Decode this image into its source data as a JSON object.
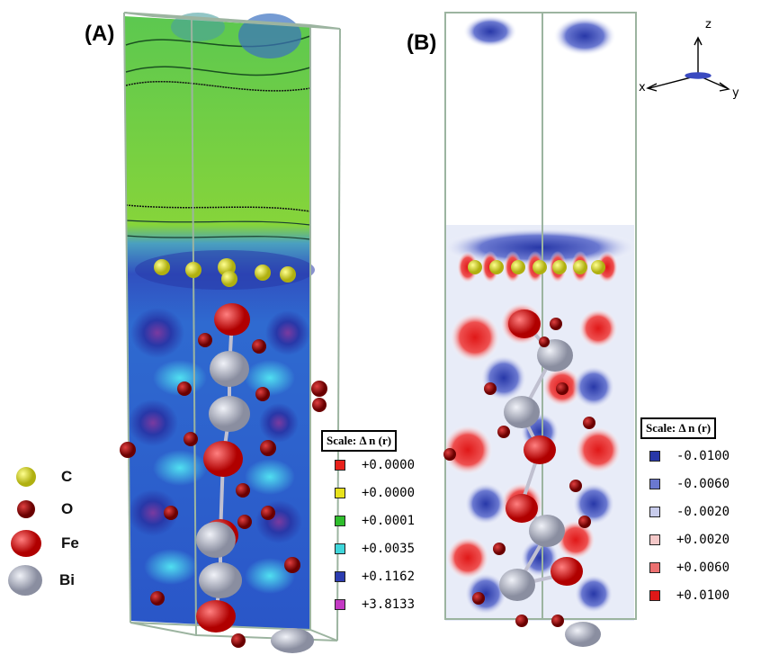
{
  "panels": {
    "a": {
      "label": "(A)"
    },
    "b": {
      "label": "(B)"
    }
  },
  "axes": {
    "z": "z",
    "x": "x",
    "y": "y"
  },
  "legend_a": {
    "title": "Scale: Δ n (r)",
    "entries": [
      {
        "value": "+0.0000",
        "color": "#e8221c"
      },
      {
        "value": "+0.0000",
        "color": "#e8e21c"
      },
      {
        "value": "+0.0001",
        "color": "#2fbe2c"
      },
      {
        "value": "+0.0035",
        "color": "#3fd6da"
      },
      {
        "value": "+0.1162",
        "color": "#2c3cb0"
      },
      {
        "value": "+3.8133",
        "color": "#c43ac4"
      }
    ]
  },
  "legend_b": {
    "title": "Scale: Δ n (r)",
    "entries": [
      {
        "value": "-0.0100",
        "color": "#2838a8"
      },
      {
        "value": "-0.0060",
        "color": "#6a78d0"
      },
      {
        "value": "-0.0020",
        "color": "#c8ccec"
      },
      {
        "value": "+0.0020",
        "color": "#f4c8c8"
      },
      {
        "value": "+0.0060",
        "color": "#ec7070"
      },
      {
        "value": "+0.0100",
        "color": "#e01818"
      }
    ]
  },
  "atom_legend": [
    {
      "symbol": "C",
      "color": "#d8d830",
      "icon": "carbon-atom-icon"
    },
    {
      "symbol": "O",
      "color": "#a01010",
      "icon": "oxygen-atom-icon"
    },
    {
      "symbol": "Fe",
      "color": "#e01818",
      "icon": "iron-atom-icon"
    },
    {
      "symbol": "Bi",
      "color": "#b8bccc",
      "icon": "bismuth-atom-icon"
    }
  ]
}
